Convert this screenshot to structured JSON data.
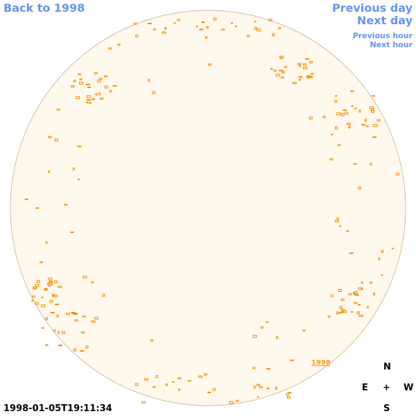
{
  "nav": {
    "back": "Back to 1998",
    "previous_day": "Previous day",
    "next_day": "Next day",
    "previous_hour": "Previous hour",
    "next_hour": "Next hour"
  },
  "year_label": "1998",
  "timestamp": "1998-01-05T19:11:34",
  "compass": {
    "n": "N",
    "e": "E",
    "center": "+",
    "w": "W",
    "s": "S"
  }
}
